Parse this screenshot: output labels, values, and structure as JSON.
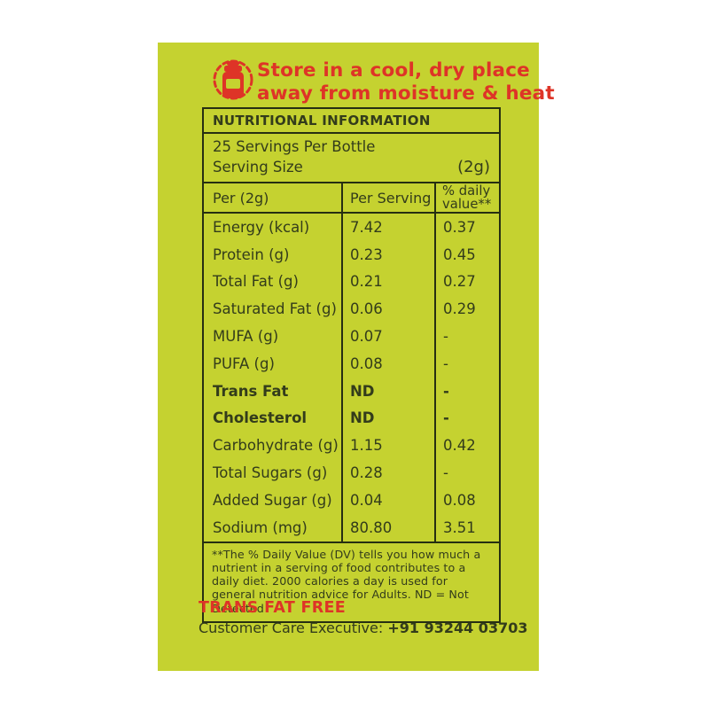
{
  "colors": {
    "panel_background": "#c5d230",
    "text_dark": "#333c1b",
    "border_dark": "#262f12",
    "accent_red": "#de3427"
  },
  "storage_notice": {
    "line1": "Store in a cool, dry place",
    "line2": "away from moisture & heat",
    "icon": "jar-icon"
  },
  "table": {
    "title": "NUTRITIONAL INFORMATION",
    "servings_per_bottle": "25 Servings Per Bottle",
    "serving_size_label": "Serving Size",
    "serving_size_value": "(2g)",
    "columns": [
      "Per (2g)",
      "Per Serving",
      "% daily value**"
    ],
    "rows": [
      {
        "nutrient": "Energy (kcal)",
        "per_serving": "7.42",
        "daily_value": "0.37",
        "bold": false
      },
      {
        "nutrient": "Protein (g)",
        "per_serving": "0.23",
        "daily_value": "0.45",
        "bold": false
      },
      {
        "nutrient": "Total Fat (g)",
        "per_serving": "0.21",
        "daily_value": "0.27",
        "bold": false
      },
      {
        "nutrient": "Saturated Fat (g)",
        "per_serving": "0.06",
        "daily_value": "0.29",
        "bold": false
      },
      {
        "nutrient": "MUFA (g)",
        "per_serving": "0.07",
        "daily_value": "-",
        "bold": false
      },
      {
        "nutrient": "PUFA (g)",
        "per_serving": "0.08",
        "daily_value": "-",
        "bold": false
      },
      {
        "nutrient": "Trans Fat",
        "per_serving": "ND",
        "daily_value": "-",
        "bold": true
      },
      {
        "nutrient": "Cholesterol",
        "per_serving": "ND",
        "daily_value": "-",
        "bold": true
      },
      {
        "nutrient": "Carbohydrate (g)",
        "per_serving": "1.15",
        "daily_value": "0.42",
        "bold": false
      },
      {
        "nutrient": "Total Sugars (g)",
        "per_serving": "0.28",
        "daily_value": "-",
        "bold": false
      },
      {
        "nutrient": "Added Sugar (g)",
        "per_serving": "0.04",
        "daily_value": "0.08",
        "bold": false
      },
      {
        "nutrient": "Sodium (mg)",
        "per_serving": "80.80",
        "daily_value": "3.51",
        "bold": false
      }
    ],
    "footnote": "**The % Daily Value (DV) tells you how much a nutrient in a serving of food contributes to a daily diet. 2000 calories a day is used for general nutrition advice for Adults.  ND = Not Detected"
  },
  "footer": {
    "trans_fat_free": "TRANS FAT FREE",
    "customer_care_label": "Customer Care Executive:",
    "customer_care_number": "+91 93244 03703"
  }
}
